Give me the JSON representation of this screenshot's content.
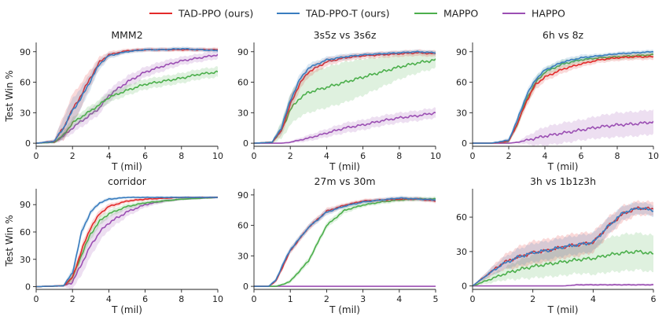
{
  "legend": [
    {
      "label": "TAD-PPO (ours)",
      "color": "#e32a2a"
    },
    {
      "label": "TAD-PPO-T (ours)",
      "color": "#3a7dbf"
    },
    {
      "label": "MAPPO",
      "color": "#4caf4c"
    },
    {
      "label": "HAPPO",
      "color": "#9b4fb3"
    }
  ],
  "chart_data": [
    {
      "type": "line",
      "title": "MMM2",
      "xlabel": "T (mil)",
      "ylabel": "Test Win %",
      "xlim": [
        0,
        10
      ],
      "ylim": [
        -3,
        96
      ],
      "xticks": [
        0,
        2,
        4,
        6,
        8,
        10
      ],
      "yticks": [
        0,
        30,
        60,
        90
      ],
      "x": [
        0,
        1,
        1.5,
        2,
        2.5,
        3,
        3.5,
        4,
        5,
        6,
        7,
        8,
        9,
        10
      ],
      "series": [
        {
          "name": "TAD-PPO (ours)",
          "values": [
            0,
            2,
            15,
            33,
            48,
            65,
            80,
            87,
            91,
            92,
            92,
            92,
            92,
            92
          ],
          "band": [
            0,
            2,
            12,
            15,
            12,
            8,
            5,
            3,
            2,
            2,
            2,
            2,
            2,
            2
          ]
        },
        {
          "name": "TAD-PPO-T (ours)",
          "values": [
            0,
            2,
            15,
            32,
            45,
            62,
            78,
            86,
            90,
            92,
            92,
            93,
            92,
            91
          ],
          "band": [
            0,
            2,
            10,
            12,
            10,
            8,
            5,
            3,
            2,
            2,
            2,
            2,
            2,
            2
          ]
        },
        {
          "name": "MAPPO",
          "values": [
            0,
            1,
            8,
            20,
            26,
            32,
            38,
            45,
            52,
            58,
            61,
            64,
            68,
            70
          ],
          "band": [
            0,
            1,
            4,
            5,
            5,
            5,
            5,
            5,
            5,
            5,
            5,
            5,
            5,
            5
          ]
        },
        {
          "name": "HAPPO",
          "values": [
            0,
            1,
            7,
            15,
            22,
            28,
            35,
            47,
            60,
            70,
            76,
            81,
            84,
            87
          ],
          "band": [
            0,
            1,
            4,
            5,
            6,
            6,
            6,
            6,
            6,
            5,
            5,
            4,
            4,
            4
          ]
        }
      ]
    },
    {
      "type": "line",
      "title": "3s5z vs 3s6z",
      "xlabel": "T (mil)",
      "ylabel": "",
      "xlim": [
        0,
        10
      ],
      "ylim": [
        -3,
        96
      ],
      "xticks": [
        0,
        2,
        4,
        6,
        8,
        10
      ],
      "yticks": [
        0,
        30,
        60,
        90
      ],
      "x": [
        0,
        1,
        1.5,
        2,
        2.5,
        3,
        4,
        5,
        6,
        7,
        8,
        9,
        10
      ],
      "series": [
        {
          "name": "TAD-PPO (ours)",
          "values": [
            0,
            1,
            12,
            38,
            58,
            70,
            80,
            84,
            86,
            87,
            88,
            89,
            88
          ],
          "band": [
            0,
            1,
            5,
            8,
            6,
            5,
            4,
            3,
            3,
            3,
            3,
            3,
            3
          ]
        },
        {
          "name": "TAD-PPO-T (ours)",
          "values": [
            0,
            1,
            15,
            42,
            62,
            74,
            82,
            85,
            87,
            88,
            89,
            90,
            89
          ],
          "band": [
            0,
            1,
            5,
            6,
            5,
            4,
            3,
            3,
            2,
            2,
            2,
            2,
            2
          ]
        },
        {
          "name": "MAPPO",
          "values": [
            0,
            1,
            12,
            33,
            44,
            50,
            55,
            60,
            65,
            70,
            75,
            79,
            82
          ],
          "band": [
            0,
            1,
            8,
            15,
            18,
            20,
            20,
            20,
            18,
            15,
            12,
            10,
            8
          ]
        },
        {
          "name": "HAPPO",
          "values": [
            0,
            0,
            0,
            1,
            3,
            5,
            10,
            15,
            18,
            22,
            25,
            27,
            30
          ],
          "band": [
            0,
            0,
            0,
            1,
            2,
            3,
            4,
            5,
            5,
            5,
            5,
            5,
            5
          ]
        }
      ]
    },
    {
      "type": "line",
      "title": "6h vs 8z",
      "xlabel": "T (mil)",
      "ylabel": "",
      "xlim": [
        0,
        10
      ],
      "ylim": [
        -3,
        96
      ],
      "xticks": [
        0,
        2,
        4,
        6,
        8,
        10
      ],
      "yticks": [
        0,
        30,
        60,
        90
      ],
      "x": [
        0,
        1,
        2,
        2.5,
        3,
        3.5,
        4,
        5,
        6,
        7,
        8,
        9,
        10
      ],
      "series": [
        {
          "name": "TAD-PPO (ours)",
          "values": [
            0,
            0,
            2,
            20,
            42,
            58,
            65,
            73,
            78,
            82,
            84,
            85,
            85
          ],
          "band": [
            0,
            0,
            2,
            4,
            5,
            5,
            4,
            4,
            3,
            3,
            3,
            3,
            3
          ]
        },
        {
          "name": "TAD-PPO-T (ours)",
          "values": [
            0,
            0,
            3,
            24,
            48,
            63,
            72,
            80,
            84,
            86,
            88,
            89,
            90
          ],
          "band": [
            0,
            0,
            2,
            4,
            4,
            4,
            3,
            3,
            3,
            2,
            2,
            2,
            2
          ]
        },
        {
          "name": "MAPPO",
          "values": [
            0,
            0,
            2,
            20,
            44,
            60,
            70,
            78,
            82,
            84,
            85,
            86,
            87
          ],
          "band": [
            0,
            0,
            2,
            4,
            5,
            5,
            4,
            4,
            3,
            3,
            3,
            3,
            3
          ]
        },
        {
          "name": "HAPPO",
          "values": [
            0,
            0,
            0,
            1,
            3,
            5,
            7,
            10,
            13,
            16,
            18,
            19,
            21
          ],
          "band": [
            0,
            0,
            0,
            1,
            4,
            7,
            9,
            10,
            10,
            11,
            12,
            12,
            12
          ]
        }
      ]
    },
    {
      "type": "line",
      "title": "corridor",
      "xlabel": "T (mil)",
      "ylabel": "Test Win %",
      "xlim": [
        0,
        10
      ],
      "ylim": [
        -3,
        104
      ],
      "xticks": [
        0,
        2,
        4,
        6,
        8,
        10
      ],
      "yticks": [
        0,
        30,
        60,
        90
      ],
      "x": [
        0,
        1.5,
        2,
        2.5,
        3,
        3.5,
        4,
        5,
        6,
        7,
        8,
        9,
        10
      ],
      "series": [
        {
          "name": "TAD-PPO (ours)",
          "values": [
            0,
            1,
            10,
            40,
            65,
            80,
            88,
            94,
            96,
            97,
            98,
            98,
            98
          ],
          "band": [
            0,
            1,
            5,
            6,
            5,
            4,
            3,
            2,
            2,
            1,
            1,
            1,
            1
          ]
        },
        {
          "name": "TAD-PPO-T (ours)",
          "values": [
            0,
            1,
            15,
            60,
            82,
            92,
            96,
            98,
            98,
            98,
            98,
            98,
            98
          ],
          "band": [
            0,
            1,
            5,
            5,
            3,
            2,
            2,
            1,
            1,
            1,
            1,
            1,
            1
          ]
        },
        {
          "name": "MAPPO",
          "values": [
            0,
            1,
            10,
            35,
            58,
            72,
            80,
            88,
            92,
            94,
            96,
            97,
            98
          ],
          "band": [
            0,
            1,
            5,
            6,
            6,
            5,
            4,
            3,
            2,
            2,
            1,
            1,
            1
          ]
        },
        {
          "name": "HAPPO",
          "values": [
            0,
            1,
            5,
            25,
            45,
            60,
            70,
            82,
            90,
            94,
            96,
            97,
            98
          ],
          "band": [
            0,
            1,
            8,
            12,
            12,
            10,
            8,
            5,
            3,
            2,
            1,
            1,
            1
          ]
        }
      ]
    },
    {
      "type": "line",
      "title": "27m vs 30m",
      "xlabel": "T (mil)",
      "ylabel": "",
      "xlim": [
        0,
        5
      ],
      "ylim": [
        -3,
        93
      ],
      "xticks": [
        0,
        1,
        2,
        3,
        4,
        5
      ],
      "yticks": [
        0,
        30,
        60,
        90
      ],
      "x": [
        0,
        0.4,
        0.6,
        0.8,
        1,
        1.5,
        2,
        2.5,
        3,
        3.5,
        4,
        4.5,
        5
      ],
      "series": [
        {
          "name": "TAD-PPO (ours)",
          "values": [
            0,
            0,
            5,
            20,
            35,
            58,
            74,
            80,
            84,
            85,
            86,
            86,
            84
          ],
          "band": [
            0,
            0,
            2,
            3,
            3,
            3,
            3,
            2,
            2,
            2,
            2,
            2,
            2
          ]
        },
        {
          "name": "TAD-PPO-T (ours)",
          "values": [
            0,
            0,
            6,
            22,
            36,
            58,
            73,
            79,
            83,
            85,
            87,
            86,
            85
          ],
          "band": [
            0,
            0,
            2,
            3,
            3,
            3,
            3,
            2,
            2,
            2,
            2,
            2,
            2
          ]
        },
        {
          "name": "MAPPO",
          "values": [
            0,
            0,
            0,
            2,
            5,
            25,
            60,
            75,
            80,
            83,
            85,
            86,
            86
          ],
          "band": [
            0,
            0,
            0,
            1,
            2,
            3,
            3,
            3,
            2,
            2,
            2,
            2,
            2
          ]
        },
        {
          "name": "HAPPO",
          "values": [
            0,
            0,
            0,
            0,
            0,
            0,
            0,
            0,
            0,
            0,
            0,
            0,
            0
          ],
          "band": [
            0,
            0,
            0,
            0,
            0,
            0,
            0,
            0,
            0,
            0,
            0,
            0,
            0
          ]
        }
      ]
    },
    {
      "type": "line",
      "title": "3h vs 1b1z3h",
      "xlabel": "T (mil)",
      "ylabel": "",
      "xlim": [
        0,
        6
      ],
      "ylim": [
        -3,
        82
      ],
      "xticks": [
        0,
        2,
        4,
        6
      ],
      "yticks": [
        0,
        30,
        60
      ],
      "x": [
        0,
        0.5,
        1,
        1.5,
        2,
        2.5,
        3,
        3.5,
        4,
        4.5,
        5,
        5.5,
        6
      ],
      "series": [
        {
          "name": "TAD-PPO (ours)",
          "values": [
            0,
            10,
            20,
            25,
            29,
            31,
            34,
            36,
            38,
            52,
            63,
            68,
            67
          ],
          "band": [
            0,
            3,
            6,
            9,
            10,
            10,
            10,
            10,
            9,
            8,
            7,
            6,
            6
          ]
        },
        {
          "name": "TAD-PPO-T (ours)",
          "values": [
            0,
            10,
            19,
            25,
            29,
            31,
            34,
            36,
            38,
            52,
            64,
            68,
            66
          ],
          "band": [
            0,
            3,
            5,
            7,
            8,
            8,
            8,
            8,
            8,
            7,
            6,
            5,
            5
          ]
        },
        {
          "name": "MAPPO",
          "values": [
            0,
            5,
            10,
            14,
            17,
            19,
            21,
            23,
            24,
            27,
            29,
            30,
            28
          ],
          "band": [
            0,
            3,
            5,
            8,
            10,
            11,
            12,
            12,
            14,
            15,
            16,
            16,
            16
          ]
        },
        {
          "name": "HAPPO",
          "values": [
            0,
            0,
            0,
            0,
            0,
            0,
            0,
            1,
            1,
            1,
            1,
            1,
            1
          ],
          "band": [
            0,
            0,
            0,
            0,
            0,
            0,
            0,
            1,
            1,
            1,
            1,
            1,
            1
          ]
        }
      ]
    }
  ]
}
